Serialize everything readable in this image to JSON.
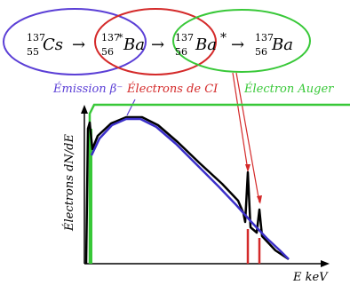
{
  "decay_chain": {
    "nuclide_1": {
      "mass": "137",
      "atomic": "55",
      "symbol": "Cs",
      "suffix": ""
    },
    "nuclide_2": {
      "mass": "137",
      "mass_marker": "*",
      "atomic": "56",
      "symbol": "Ba",
      "suffix": ""
    },
    "nuclide_3": {
      "mass": "137",
      "atomic": "56",
      "symbol": "Ba",
      "suffix": "*"
    },
    "nuclide_4": {
      "mass": "137",
      "atomic": "56",
      "symbol": "Ba",
      "suffix": ""
    },
    "arrow": "→"
  },
  "labels": {
    "beta": "Émission β⁻",
    "ce": "Électrons de CI",
    "auger": "Électron Auger"
  },
  "axes": {
    "y_label": "Électrons dN/dE",
    "x_label": "E keV"
  },
  "colors": {
    "beta": "#5b3fd6",
    "ce": "#d42a2a",
    "auger": "#38c838",
    "total": "#000000",
    "spectrum_beta": "#3b2fc9"
  }
}
